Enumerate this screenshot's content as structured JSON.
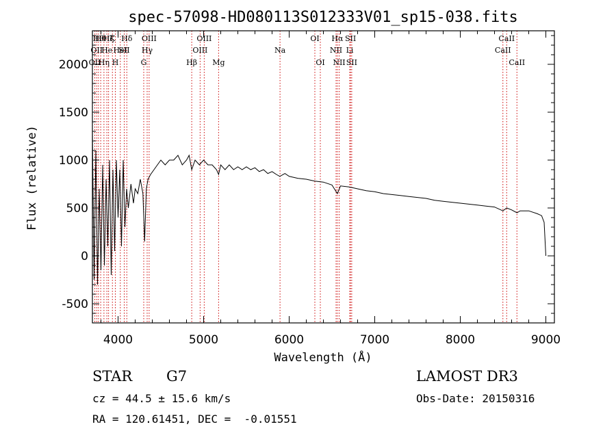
{
  "chart_data": {
    "type": "line",
    "title": "spec-57098-HD080113S012333V01_sp15-038.fits",
    "xlabel": "Wavelength (Å)",
    "ylabel": "Flux (relative)",
    "xlim": [
      3700,
      9100
    ],
    "ylim": [
      -700,
      2350
    ],
    "xticks": [
      4000,
      5000,
      6000,
      7000,
      8000,
      9000
    ],
    "yticks": [
      -500,
      0,
      500,
      1000,
      1500,
      2000
    ],
    "series": [
      {
        "name": "spectrum",
        "x": [
          3700,
          3720,
          3740,
          3760,
          3780,
          3800,
          3820,
          3840,
          3860,
          3880,
          3900,
          3920,
          3940,
          3960,
          3980,
          4000,
          4020,
          4040,
          4060,
          4080,
          4100,
          4120,
          4150,
          4180,
          4200,
          4230,
          4260,
          4290,
          4310,
          4330,
          4350,
          4380,
          4420,
          4460,
          4500,
          4550,
          4600,
          4650,
          4700,
          4750,
          4800,
          4830,
          4861,
          4900,
          4950,
          5000,
          5050,
          5100,
          5150,
          5175,
          5200,
          5250,
          5300,
          5350,
          5400,
          5450,
          5500,
          5550,
          5600,
          5650,
          5700,
          5750,
          5800,
          5850,
          5890,
          5950,
          6000,
          6100,
          6200,
          6300,
          6400,
          6500,
          6563,
          6600,
          6700,
          6800,
          6900,
          7000,
          7100,
          7200,
          7300,
          7400,
          7500,
          7600,
          7700,
          7800,
          7900,
          8000,
          8100,
          8200,
          8300,
          8400,
          8498,
          8542,
          8600,
          8662,
          8700,
          8800,
          8900,
          8950,
          8980,
          9000
        ],
        "values": [
          1300,
          -250,
          1100,
          -300,
          700,
          -150,
          950,
          -100,
          800,
          100,
          1000,
          -200,
          900,
          50,
          1000,
          400,
          900,
          100,
          1000,
          300,
          700,
          500,
          750,
          550,
          700,
          650,
          800,
          650,
          150,
          700,
          800,
          850,
          900,
          950,
          1000,
          950,
          1000,
          1000,
          1050,
          950,
          1000,
          1050,
          900,
          1000,
          950,
          1000,
          950,
          950,
          900,
          850,
          950,
          900,
          950,
          900,
          930,
          900,
          930,
          900,
          920,
          880,
          900,
          860,
          880,
          850,
          830,
          860,
          830,
          810,
          800,
          780,
          770,
          740,
          650,
          730,
          720,
          700,
          680,
          670,
          650,
          640,
          630,
          620,
          610,
          600,
          580,
          570,
          560,
          550,
          540,
          530,
          520,
          510,
          470,
          500,
          480,
          450,
          470,
          470,
          440,
          420,
          350,
          0
        ]
      }
    ],
    "line_ids": [
      {
        "wl": 3728,
        "label": "OII",
        "row": 2
      },
      {
        "wl": 3750,
        "label": "OII",
        "row": 1
      },
      {
        "wl": 3770,
        "label": "Hθ",
        "row": 0
      },
      {
        "wl": 3797,
        "label": "Hθ",
        "row": 0
      },
      {
        "wl": 3835,
        "label": "Hη",
        "row": 2
      },
      {
        "wl": 3869,
        "label": "He",
        "row": 1
      },
      {
        "wl": 3889,
        "label": "Hζ",
        "row": 0
      },
      {
        "wl": 3934,
        "label": "K",
        "row": 0
      },
      {
        "wl": 3968,
        "label": "H",
        "row": 2
      },
      {
        "wl": 4026,
        "label": "HeI",
        "row": 1
      },
      {
        "wl": 4072,
        "label": "SII",
        "row": 1
      },
      {
        "wl": 4102,
        "label": "Hδ",
        "row": 0
      },
      {
        "wl": 4300,
        "label": "G",
        "row": 2
      },
      {
        "wl": 4340,
        "label": "Hγ",
        "row": 1
      },
      {
        "wl": 4363,
        "label": "OIII",
        "row": 0
      },
      {
        "wl": 4861,
        "label": "Hβ",
        "row": 2
      },
      {
        "wl": 4959,
        "label": "OIII",
        "row": 1
      },
      {
        "wl": 5007,
        "label": "OIII",
        "row": 0
      },
      {
        "wl": 5175,
        "label": "Mg",
        "row": 2
      },
      {
        "wl": 5893,
        "label": "Na",
        "row": 1
      },
      {
        "wl": 6300,
        "label": "OI",
        "row": 0
      },
      {
        "wl": 6364,
        "label": "OI",
        "row": 2
      },
      {
        "wl": 6548,
        "label": "NII",
        "row": 1
      },
      {
        "wl": 6563,
        "label": "Hα",
        "row": 0
      },
      {
        "wl": 6584,
        "label": "NII",
        "row": 2
      },
      {
        "wl": 6708,
        "label": "Li",
        "row": 1
      },
      {
        "wl": 6717,
        "label": "SII",
        "row": 0
      },
      {
        "wl": 6731,
        "label": "SII",
        "row": 2
      },
      {
        "wl": 8498,
        "label": "CaII",
        "row": 1
      },
      {
        "wl": 8542,
        "label": "CaII",
        "row": 0
      },
      {
        "wl": 8662,
        "label": "CaII",
        "row": 2
      }
    ]
  },
  "info": {
    "object_class": "STAR",
    "subclass": "G7",
    "survey": "LAMOST DR3",
    "redshift_line": "cz = 44.5 ± 15.6 km/s",
    "obs_date": "Obs-Date: 20150316",
    "coords": "RA = 120.61451, DEC =  -0.01551"
  },
  "colors": {
    "line": "#000000",
    "marker": "#cc0000",
    "background": "#ffffff"
  }
}
